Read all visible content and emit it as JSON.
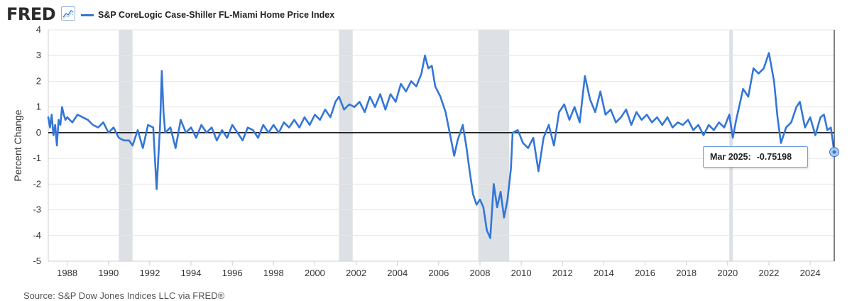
{
  "header": {
    "logo_text": "FRED",
    "logo_icon": "chart-line-icon"
  },
  "source_note": "Source: S&P Dow Jones Indices LLC via FRED®",
  "tooltip": {
    "date": "Mar 2025:",
    "value": "-0.75198"
  },
  "colors": {
    "series": "#3476d6",
    "recession": "#dde1e6",
    "zero_line": "#000000",
    "grid": "#e6e6e6"
  },
  "chart_data": {
    "type": "line",
    "title": "",
    "ylabel": "Percent Change",
    "xlabel": "",
    "x_axis": "time",
    "x_range": [
      "1987-02-01",
      "2025-03-01"
    ],
    "ylim": [
      -5,
      4
    ],
    "y_ticks": [
      4,
      3,
      2,
      1,
      0,
      -1,
      -2,
      -3,
      -4,
      -5
    ],
    "x_ticks": [
      "1988",
      "1990",
      "1992",
      "1994",
      "1996",
      "1998",
      "2000",
      "2002",
      "2004",
      "2006",
      "2008",
      "2010",
      "2012",
      "2014",
      "2016",
      "2018",
      "2020",
      "2022",
      "2024"
    ],
    "grid": "horizontal",
    "legend_position": "top-left",
    "recessions": [
      {
        "start": "1990-07-01",
        "end": "1991-03-01"
      },
      {
        "start": "2001-03-01",
        "end": "2001-11-01"
      },
      {
        "start": "2007-12-01",
        "end": "2009-06-01"
      },
      {
        "start": "2020-02-01",
        "end": "2020-04-01"
      }
    ],
    "series": [
      {
        "name": "S&P CoreLogic Case-Shiller FL-Miami Home Price Index",
        "points": [
          [
            "1987-02",
            0.6
          ],
          [
            "1987-03",
            0.2
          ],
          [
            "1987-04",
            0.7
          ],
          [
            "1987-05",
            -0.1
          ],
          [
            "1987-06",
            0.3
          ],
          [
            "1987-07",
            -0.5
          ],
          [
            "1987-08",
            0.5
          ],
          [
            "1987-09",
            0.3
          ],
          [
            "1987-10",
            1.0
          ],
          [
            "1987-11",
            0.7
          ],
          [
            "1987-12",
            0.5
          ],
          [
            "1988-01",
            0.6
          ],
          [
            "1988-04",
            0.4
          ],
          [
            "1988-07",
            0.7
          ],
          [
            "1988-10",
            0.6
          ],
          [
            "1989-01",
            0.5
          ],
          [
            "1989-04",
            0.3
          ],
          [
            "1989-07",
            0.2
          ],
          [
            "1989-10",
            0.4
          ],
          [
            "1990-01",
            0.0
          ],
          [
            "1990-04",
            0.2
          ],
          [
            "1990-07",
            -0.2
          ],
          [
            "1990-10",
            -0.3
          ],
          [
            "1991-01",
            -0.3
          ],
          [
            "1991-03",
            -0.5
          ],
          [
            "1991-06",
            0.1
          ],
          [
            "1991-09",
            -0.6
          ],
          [
            "1991-12",
            0.3
          ],
          [
            "1992-03",
            0.2
          ],
          [
            "1992-05",
            -2.2
          ],
          [
            "1992-07",
            0.3
          ],
          [
            "1992-08",
            2.4
          ],
          [
            "1992-09",
            0.8
          ],
          [
            "1992-10",
            0.0
          ],
          [
            "1993-01",
            0.2
          ],
          [
            "1993-04",
            -0.6
          ],
          [
            "1993-07",
            0.5
          ],
          [
            "1993-10",
            0.0
          ],
          [
            "1994-01",
            0.2
          ],
          [
            "1994-04",
            -0.2
          ],
          [
            "1994-07",
            0.3
          ],
          [
            "1994-10",
            0.0
          ],
          [
            "1995-01",
            0.2
          ],
          [
            "1995-04",
            -0.3
          ],
          [
            "1995-07",
            0.1
          ],
          [
            "1995-10",
            -0.2
          ],
          [
            "1996-01",
            0.3
          ],
          [
            "1996-04",
            0.0
          ],
          [
            "1996-07",
            -0.3
          ],
          [
            "1996-10",
            0.2
          ],
          [
            "1997-01",
            0.1
          ],
          [
            "1997-04",
            -0.2
          ],
          [
            "1997-07",
            0.3
          ],
          [
            "1997-10",
            0.0
          ],
          [
            "1998-01",
            0.3
          ],
          [
            "1998-04",
            0.0
          ],
          [
            "1998-07",
            0.4
          ],
          [
            "1998-10",
            0.2
          ],
          [
            "1999-01",
            0.5
          ],
          [
            "1999-04",
            0.2
          ],
          [
            "1999-07",
            0.6
          ],
          [
            "1999-10",
            0.3
          ],
          [
            "2000-01",
            0.7
          ],
          [
            "2000-04",
            0.5
          ],
          [
            "2000-07",
            0.9
          ],
          [
            "2000-10",
            0.6
          ],
          [
            "2001-01",
            1.2
          ],
          [
            "2001-03",
            1.4
          ],
          [
            "2001-06",
            0.9
          ],
          [
            "2001-09",
            1.1
          ],
          [
            "2001-12",
            1.0
          ],
          [
            "2002-03",
            1.2
          ],
          [
            "2002-06",
            0.8
          ],
          [
            "2002-09",
            1.4
          ],
          [
            "2002-12",
            1.0
          ],
          [
            "2003-03",
            1.5
          ],
          [
            "2003-06",
            0.9
          ],
          [
            "2003-09",
            1.5
          ],
          [
            "2003-12",
            1.2
          ],
          [
            "2004-03",
            1.9
          ],
          [
            "2004-06",
            1.6
          ],
          [
            "2004-09",
            2.0
          ],
          [
            "2004-12",
            1.8
          ],
          [
            "2005-03",
            2.3
          ],
          [
            "2005-05",
            3.0
          ],
          [
            "2005-07",
            2.5
          ],
          [
            "2005-09",
            2.6
          ],
          [
            "2005-11",
            1.8
          ],
          [
            "2006-02",
            1.4
          ],
          [
            "2006-05",
            0.8
          ],
          [
            "2006-08",
            -0.2
          ],
          [
            "2006-10",
            -0.9
          ],
          [
            "2006-12",
            -0.3
          ],
          [
            "2007-03",
            0.3
          ],
          [
            "2007-05",
            -0.5
          ],
          [
            "2007-07",
            -1.5
          ],
          [
            "2007-09",
            -2.4
          ],
          [
            "2007-11",
            -2.8
          ],
          [
            "2008-01",
            -2.6
          ],
          [
            "2008-03",
            -2.9
          ],
          [
            "2008-05",
            -3.8
          ],
          [
            "2008-07",
            -4.1
          ],
          [
            "2008-09",
            -2.0
          ],
          [
            "2008-11",
            -2.9
          ],
          [
            "2009-01",
            -2.3
          ],
          [
            "2009-03",
            -3.3
          ],
          [
            "2009-05",
            -2.6
          ],
          [
            "2009-07",
            -1.4
          ],
          [
            "2009-08",
            0.0
          ],
          [
            "2009-11",
            0.1
          ],
          [
            "2010-02",
            -0.4
          ],
          [
            "2010-05",
            -0.6
          ],
          [
            "2010-08",
            -0.2
          ],
          [
            "2010-11",
            -1.5
          ],
          [
            "2011-02",
            -0.2
          ],
          [
            "2011-05",
            0.3
          ],
          [
            "2011-08",
            -0.5
          ],
          [
            "2011-11",
            0.8
          ],
          [
            "2012-02",
            1.1
          ],
          [
            "2012-05",
            0.5
          ],
          [
            "2012-08",
            1.0
          ],
          [
            "2012-11",
            0.4
          ],
          [
            "2013-02",
            2.2
          ],
          [
            "2013-05",
            1.3
          ],
          [
            "2013-08",
            0.8
          ],
          [
            "2013-11",
            1.6
          ],
          [
            "2014-02",
            0.7
          ],
          [
            "2014-05",
            0.9
          ],
          [
            "2014-08",
            0.4
          ],
          [
            "2014-11",
            0.6
          ],
          [
            "2015-02",
            0.9
          ],
          [
            "2015-05",
            0.3
          ],
          [
            "2015-08",
            0.8
          ],
          [
            "2015-11",
            0.5
          ],
          [
            "2016-02",
            0.7
          ],
          [
            "2016-05",
            0.4
          ],
          [
            "2016-08",
            0.6
          ],
          [
            "2016-11",
            0.3
          ],
          [
            "2017-02",
            0.6
          ],
          [
            "2017-05",
            0.2
          ],
          [
            "2017-08",
            0.4
          ],
          [
            "2017-11",
            0.3
          ],
          [
            "2018-02",
            0.5
          ],
          [
            "2018-05",
            0.1
          ],
          [
            "2018-08",
            0.3
          ],
          [
            "2018-11",
            -0.1
          ],
          [
            "2019-02",
            0.3
          ],
          [
            "2019-05",
            0.1
          ],
          [
            "2019-08",
            0.4
          ],
          [
            "2019-11",
            0.2
          ],
          [
            "2020-02",
            0.7
          ],
          [
            "2020-04",
            -0.2
          ],
          [
            "2020-06",
            0.5
          ],
          [
            "2020-08",
            1.1
          ],
          [
            "2020-10",
            1.7
          ],
          [
            "2021-01",
            1.4
          ],
          [
            "2021-04",
            2.5
          ],
          [
            "2021-07",
            2.3
          ],
          [
            "2021-10",
            2.5
          ],
          [
            "2022-01",
            3.1
          ],
          [
            "2022-04",
            2.0
          ],
          [
            "2022-06",
            0.6
          ],
          [
            "2022-08",
            -0.4
          ],
          [
            "2022-11",
            0.2
          ],
          [
            "2023-02",
            0.4
          ],
          [
            "2023-05",
            1.0
          ],
          [
            "2023-07",
            1.2
          ],
          [
            "2023-10",
            0.2
          ],
          [
            "2024-01",
            0.6
          ],
          [
            "2024-04",
            -0.1
          ],
          [
            "2024-07",
            0.6
          ],
          [
            "2024-09",
            0.7
          ],
          [
            "2024-11",
            0.1
          ],
          [
            "2025-01",
            0.2
          ],
          [
            "2025-03",
            -0.75198
          ]
        ]
      }
    ]
  }
}
